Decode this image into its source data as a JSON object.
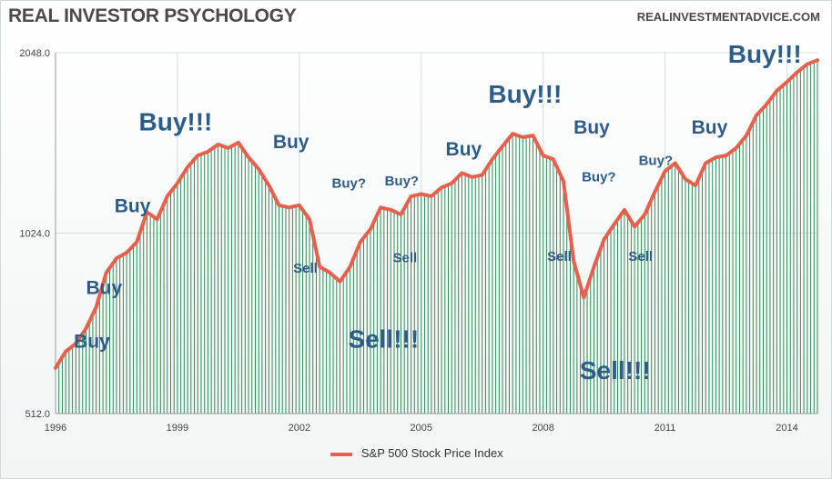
{
  "header": {
    "title": "REAL INVESTOR PSYCHOLOGY",
    "source": "REALINVESTMENTADVICE.COM"
  },
  "colors": {
    "line": "#e8604c",
    "bars": "#2e8b57",
    "annotation": "#2e5c8a",
    "grid": "#d6dedb"
  },
  "chart_data": {
    "type": "line",
    "title": "REAL INVESTOR PSYCHOLOGY",
    "yscale": "log2",
    "ylim": [
      512,
      2048
    ],
    "xlim": [
      1996,
      2014.75
    ],
    "y_ticks": [
      512.0,
      1024.0,
      2048.0
    ],
    "y_tick_labels": [
      "512.0",
      "1024.0",
      "2048.0"
    ],
    "x_ticks": [
      1996,
      1999,
      2002,
      2005,
      2008,
      2011,
      2014
    ],
    "x_tick_labels": [
      "1996",
      "1999",
      "2002",
      "2005",
      "2008",
      "2011",
      "2014"
    ],
    "legend": "bottom-center",
    "series": [
      {
        "name": "S&P 500 Stock Price Index",
        "style": "line-with-area-bars",
        "x": [
          1996.0,
          1996.25,
          1996.5,
          1996.75,
          1997.0,
          1997.25,
          1997.5,
          1997.75,
          1998.0,
          1998.25,
          1998.5,
          1998.75,
          1999.0,
          1999.25,
          1999.5,
          1999.75,
          2000.0,
          2000.25,
          2000.5,
          2000.75,
          2001.0,
          2001.25,
          2001.5,
          2001.75,
          2002.0,
          2002.25,
          2002.5,
          2002.75,
          2003.0,
          2003.25,
          2003.5,
          2003.75,
          2004.0,
          2004.25,
          2004.5,
          2004.75,
          2005.0,
          2005.25,
          2005.5,
          2005.75,
          2006.0,
          2006.25,
          2006.5,
          2006.75,
          2007.0,
          2007.25,
          2007.5,
          2007.75,
          2008.0,
          2008.25,
          2008.5,
          2008.75,
          2009.0,
          2009.25,
          2009.5,
          2009.75,
          2010.0,
          2010.25,
          2010.5,
          2010.75,
          2011.0,
          2011.25,
          2011.5,
          2011.75,
          2012.0,
          2012.25,
          2012.5,
          2012.75,
          2013.0,
          2013.25,
          2013.5,
          2013.75,
          2014.0,
          2014.25,
          2014.5,
          2014.75
        ],
        "values": [
          610,
          650,
          670,
          710,
          770,
          880,
          930,
          950,
          990,
          1110,
          1080,
          1180,
          1240,
          1320,
          1380,
          1400,
          1440,
          1420,
          1450,
          1370,
          1310,
          1230,
          1140,
          1130,
          1140,
          1080,
          900,
          880,
          850,
          900,
          990,
          1040,
          1130,
          1120,
          1100,
          1180,
          1190,
          1180,
          1220,
          1240,
          1290,
          1270,
          1280,
          1360,
          1430,
          1500,
          1480,
          1490,
          1380,
          1360,
          1250,
          920,
          800,
          900,
          1000,
          1060,
          1120,
          1050,
          1100,
          1200,
          1300,
          1340,
          1260,
          1230,
          1340,
          1370,
          1380,
          1420,
          1490,
          1610,
          1680,
          1770,
          1830,
          1900,
          1960,
          1990
        ]
      }
    ],
    "annotations": [
      {
        "text": "Buy",
        "x": 1996.45,
        "y": 660
      },
      {
        "text": "Buy",
        "x": 1996.75,
        "y": 810
      },
      {
        "text": "Buy",
        "x": 1997.45,
        "y": 1110
      },
      {
        "text": "Buy!!!",
        "x": 1998.05,
        "y": 1520
      },
      {
        "text": "Buy",
        "x": 2001.35,
        "y": 1420
      },
      {
        "text": "Sell",
        "x": 2001.85,
        "y": 880
      },
      {
        "text": "Buy?",
        "x": 2002.8,
        "y": 1220
      },
      {
        "text": "Sell!!!",
        "x": 2003.2,
        "y": 660
      },
      {
        "text": "Buy?",
        "x": 2004.1,
        "y": 1230
      },
      {
        "text": "Sell",
        "x": 2004.3,
        "y": 915
      },
      {
        "text": "Buy",
        "x": 2005.6,
        "y": 1380
      },
      {
        "text": "Buy!!!",
        "x": 2006.65,
        "y": 1690
      },
      {
        "text": "Buy",
        "x": 2008.75,
        "y": 1500
      },
      {
        "text": "Sell",
        "x": 2008.1,
        "y": 920
      },
      {
        "text": "Buy?",
        "x": 2008.95,
        "y": 1250
      },
      {
        "text": "Sell!!!",
        "x": 2008.9,
        "y": 585
      },
      {
        "text": "Buy?",
        "x": 2010.35,
        "y": 1330
      },
      {
        "text": "Sell",
        "x": 2010.1,
        "y": 920
      },
      {
        "text": "Buy",
        "x": 2011.65,
        "y": 1500
      },
      {
        "text": "Buy!!!",
        "x": 2012.55,
        "y": 1970
      }
    ]
  },
  "legend": {
    "label": "S&P 500 Stock Price Index"
  }
}
